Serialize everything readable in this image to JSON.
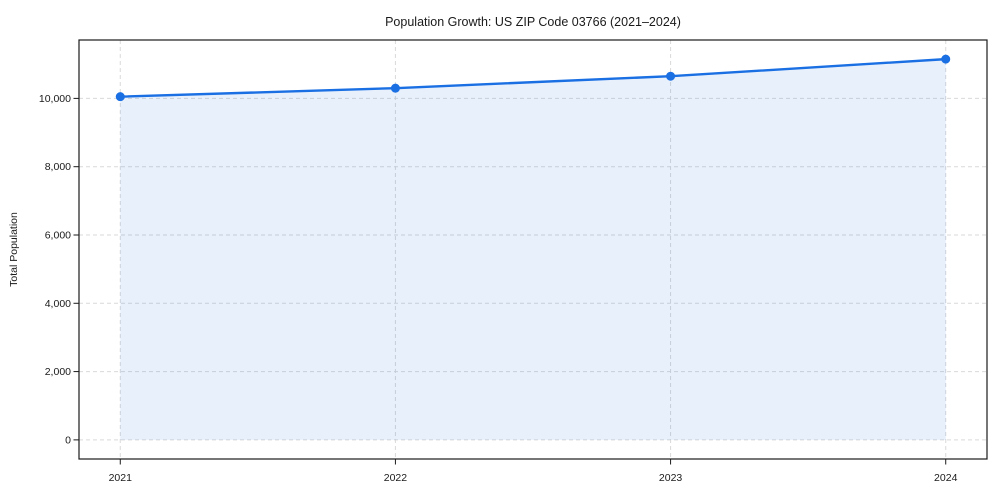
{
  "chart_data": {
    "type": "line",
    "title": "Population Growth: US ZIP Code 03766 (2021–2024)",
    "xlabel": "",
    "ylabel": "Total Population",
    "x": [
      2021,
      2022,
      2023,
      2024
    ],
    "series": [
      {
        "name": "Total Population",
        "values": [
          10050,
          10300,
          10650,
          11150
        ]
      }
    ],
    "area_fill": true,
    "area_baseline": 0,
    "markers": true,
    "legend_position": "none",
    "grid": {
      "horizontal": true,
      "vertical": true,
      "style": "dashed"
    },
    "xlim": [
      2020.85,
      2024.15
    ],
    "ylim": [
      -560,
      11710
    ],
    "xticks": [
      2021,
      2022,
      2023,
      2024
    ],
    "xtick_labels": [
      "2021",
      "2022",
      "2023",
      "2024"
    ],
    "yticks": [
      0,
      2000,
      4000,
      6000,
      8000,
      10000
    ],
    "ytick_labels": [
      "0",
      "2,000",
      "4,000",
      "6,000",
      "8,000",
      "10,000"
    ],
    "colors": {
      "line": "#1a6fe3",
      "marker": "#1a6fe3",
      "fill": "#1a6fe3",
      "fill_opacity": 0.1,
      "grid": "#d9d9d9",
      "frame": "#1a1a1a",
      "tick": "#1a1a1a",
      "text": "#1a1a1a",
      "background": "#ffffff"
    }
  }
}
